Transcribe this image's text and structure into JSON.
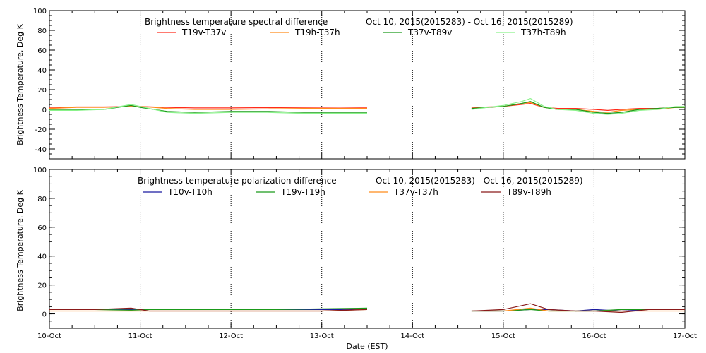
{
  "chart_data": [
    {
      "type": "line",
      "title": "Brightness temperature spectral difference",
      "date_range": "Oct 10, 2015(2015283) - Oct 16, 2015(2015289)",
      "ylabel": "Brightness Temperature, Deg K",
      "xlabel": "",
      "ylim": [
        -50,
        100
      ],
      "xlim": [
        0,
        7
      ],
      "yticks": [
        "-40",
        "-20",
        "0",
        "20",
        "40",
        "60",
        "80",
        "100"
      ],
      "ytick_values": [
        -40,
        -20,
        0,
        20,
        40,
        60,
        80,
        100
      ],
      "vgrid_days": [
        1,
        2,
        3,
        4,
        5,
        6
      ],
      "series": [
        {
          "name": "T19v-T37v",
          "color": "#ff2a1a",
          "x": [
            0,
            0.3,
            0.6,
            0.9,
            1.0,
            1.3,
            1.6,
            2.0,
            2.4,
            2.8,
            3.2,
            3.5,
            4.65,
            5.0,
            5.2,
            5.3,
            5.45,
            5.6,
            5.8,
            6.0,
            6.15,
            6.3,
            6.5,
            6.7,
            6.9,
            7.0
          ],
          "y": [
            2,
            2.5,
            2.5,
            3,
            3,
            2,
            1.5,
            1.5,
            1.8,
            2,
            2.2,
            2,
            2,
            3,
            5,
            6,
            2,
            1,
            1,
            0,
            -1,
            0,
            1,
            1,
            2,
            2
          ]
        },
        {
          "name": "T19h-T37h",
          "color": "#ff8c1a",
          "x": [
            0,
            0.3,
            0.6,
            0.9,
            1.0,
            1.3,
            1.6,
            2.0,
            2.4,
            2.8,
            3.2,
            3.5,
            4.65,
            5.0,
            5.2,
            5.3,
            5.45,
            5.6,
            5.8,
            6.0,
            6.15,
            6.3,
            6.5,
            6.7,
            6.9,
            7.0
          ],
          "y": [
            1,
            2,
            2,
            3,
            3,
            1,
            0,
            0,
            0.5,
            1,
            1,
            1,
            1,
            3,
            6,
            7,
            2,
            0,
            0,
            -2,
            -3,
            -1,
            0,
            0,
            2,
            2
          ]
        },
        {
          "name": "T37v-T89v",
          "color": "#1a9a1a",
          "x": [
            0,
            0.3,
            0.6,
            0.9,
            1.0,
            1.3,
            1.6,
            2.0,
            2.4,
            2.8,
            3.2,
            3.5,
            4.65,
            5.0,
            5.2,
            5.3,
            5.45,
            5.6,
            5.8,
            6.0,
            6.15,
            6.3,
            6.5,
            6.7,
            6.9,
            7.0
          ],
          "y": [
            0,
            0,
            0,
            4,
            2,
            -2,
            -3,
            -2,
            -2,
            -3,
            -3,
            -3,
            1,
            3,
            6,
            8,
            2,
            0,
            0,
            -3,
            -4,
            -3,
            0,
            1,
            2,
            2
          ]
        },
        {
          "name": "T37h-T89h",
          "color": "#8af28a",
          "x": [
            0,
            0.3,
            0.6,
            0.9,
            1.0,
            1.3,
            1.6,
            2.0,
            2.4,
            2.8,
            3.2,
            3.5,
            4.65,
            5.0,
            5.2,
            5.3,
            5.45,
            5.6,
            5.8,
            6.0,
            6.15,
            6.3,
            6.5,
            6.7,
            6.9,
            7.0
          ],
          "y": [
            -1,
            -1,
            0,
            5,
            3,
            -3,
            -4,
            -3,
            -3,
            -4,
            -4,
            -4,
            0,
            4,
            8,
            11,
            3,
            0,
            -1,
            -4,
            -5,
            -4,
            -1,
            0,
            3,
            3
          ]
        }
      ]
    },
    {
      "type": "line",
      "title": "Brightness temperature polarization difference",
      "date_range": "Oct 10, 2015(2015283) - Oct 16, 2015(2015289)",
      "ylabel": "Brightness Temperature, Deg K",
      "xlabel": "Date (EST)",
      "ylim": [
        -10,
        100
      ],
      "xlim": [
        0,
        7
      ],
      "yticks": [
        "0",
        "20",
        "40",
        "60",
        "80",
        "100"
      ],
      "ytick_values": [
        0,
        20,
        40,
        60,
        80,
        100
      ],
      "xticks": [
        "10-Oct",
        "11-Oct",
        "12-Oct",
        "13-Oct",
        "14-Oct",
        "15-Oct",
        "16-Oct",
        "17-Oct"
      ],
      "xtick_values": [
        0,
        1,
        2,
        3,
        4,
        5,
        6,
        7
      ],
      "vgrid_days": [
        1,
        2,
        3,
        4,
        5,
        6
      ],
      "series": [
        {
          "name": "T10v-T10h",
          "color": "#1a1aa0",
          "x": [
            0,
            0.5,
            0.9,
            1.1,
            1.5,
            2.0,
            2.5,
            3.0,
            3.5,
            4.65,
            5.0,
            5.3,
            5.5,
            5.8,
            6.0,
            6.3,
            6.6,
            7.0
          ],
          "y": [
            3,
            3,
            3,
            3,
            3,
            3,
            3,
            3,
            3,
            2,
            2,
            3,
            3,
            2,
            3,
            2,
            3,
            3
          ]
        },
        {
          "name": "T19v-T19h",
          "color": "#1a9a1a",
          "x": [
            0,
            0.5,
            0.9,
            1.1,
            1.5,
            2.0,
            2.5,
            3.0,
            3.5,
            4.65,
            5.0,
            5.3,
            5.5,
            5.8,
            6.0,
            6.3,
            6.6,
            7.0
          ],
          "y": [
            3,
            3,
            2.5,
            3,
            3,
            3,
            3,
            3.5,
            4,
            2,
            2,
            3,
            2,
            2,
            2,
            3,
            3,
            3
          ]
        },
        {
          "name": "T37v-T37h",
          "color": "#ff8c1a",
          "x": [
            0,
            0.5,
            0.9,
            1.1,
            1.5,
            2.0,
            2.5,
            3.0,
            3.5,
            4.65,
            5.0,
            5.3,
            5.5,
            5.8,
            6.0,
            6.3,
            6.6,
            7.0
          ],
          "y": [
            2,
            2,
            2,
            2,
            2,
            2,
            2,
            2,
            3,
            2,
            2,
            4,
            2,
            2,
            2,
            2,
            2,
            2
          ]
        },
        {
          "name": "T89v-T89h",
          "color": "#8a1a1a",
          "x": [
            0,
            0.5,
            0.9,
            1.1,
            1.5,
            2.0,
            2.5,
            3.0,
            3.5,
            4.65,
            5.0,
            5.3,
            5.5,
            5.8,
            6.0,
            6.3,
            6.6,
            7.0
          ],
          "y": [
            3,
            3,
            4,
            2,
            2,
            2,
            2,
            2,
            3,
            2,
            3,
            7,
            3,
            2,
            2,
            1,
            3,
            3
          ]
        }
      ]
    }
  ]
}
